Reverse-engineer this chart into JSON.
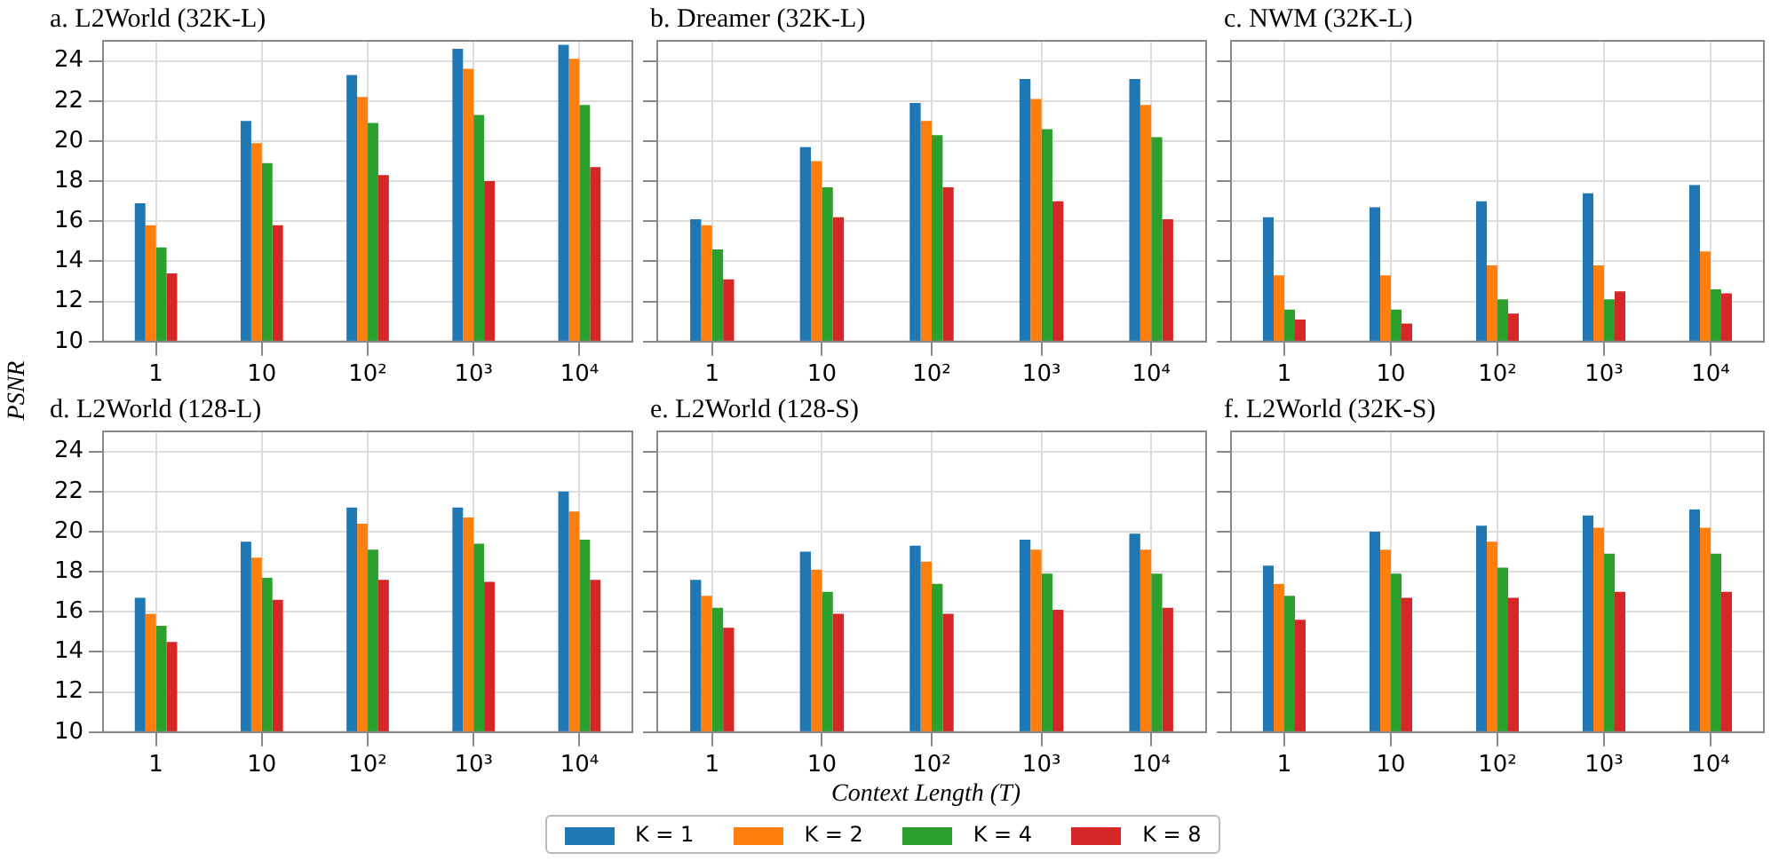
{
  "chart_data": [
    {
      "type": "bar",
      "title": "a. L2World (32K-L)",
      "ylabel": "PSNR",
      "legend": "bottom",
      "categories": [
        "1",
        "10",
        "10²",
        "10³",
        "10⁴"
      ],
      "ylim": [
        10,
        25
      ],
      "yticks": [
        10,
        12,
        14,
        16,
        18,
        20,
        22,
        24
      ],
      "grid": true,
      "tick_labels": "xy",
      "series": [
        {
          "name": "K = 1",
          "color": "#1f77b4",
          "values": [
            16.9,
            21.0,
            23.3,
            24.6,
            24.8
          ]
        },
        {
          "name": "K = 2",
          "color": "#ff7f0e",
          "values": [
            15.8,
            19.9,
            22.2,
            23.6,
            24.1
          ]
        },
        {
          "name": "K = 4",
          "color": "#2ca02c",
          "values": [
            14.7,
            18.9,
            20.9,
            21.3,
            21.8
          ]
        },
        {
          "name": "K = 8",
          "color": "#d62728",
          "values": [
            13.4,
            15.8,
            18.3,
            18.0,
            18.7
          ]
        }
      ]
    },
    {
      "type": "bar",
      "title": "b. Dreamer (32K-L)",
      "categories": [
        "1",
        "10",
        "10²",
        "10³",
        "10⁴"
      ],
      "ylim": [
        10,
        25
      ],
      "yticks": [
        10,
        12,
        14,
        16,
        18,
        20,
        22,
        24
      ],
      "grid": true,
      "tick_labels": "x",
      "series": [
        {
          "color": "#1f77b4",
          "values": [
            16.1,
            19.7,
            21.9,
            23.1,
            23.1
          ]
        },
        {
          "color": "#ff7f0e",
          "values": [
            15.8,
            19.0,
            21.0,
            22.1,
            21.8
          ]
        },
        {
          "color": "#2ca02c",
          "values": [
            14.6,
            17.7,
            20.3,
            20.6,
            20.2
          ]
        },
        {
          "color": "#d62728",
          "values": [
            13.1,
            16.2,
            17.7,
            17.0,
            16.1
          ]
        }
      ]
    },
    {
      "type": "bar",
      "title": "c. NWM (32K-L)",
      "categories": [
        "1",
        "10",
        "10²",
        "10³",
        "10⁴"
      ],
      "ylim": [
        10,
        25
      ],
      "yticks": [
        10,
        12,
        14,
        16,
        18,
        20,
        22,
        24
      ],
      "grid": true,
      "tick_labels": "x",
      "series": [
        {
          "color": "#1f77b4",
          "values": [
            16.2,
            16.7,
            17.0,
            17.4,
            17.8
          ]
        },
        {
          "color": "#ff7f0e",
          "values": [
            13.3,
            13.3,
            13.8,
            13.8,
            14.5
          ]
        },
        {
          "color": "#2ca02c",
          "values": [
            11.6,
            11.6,
            12.1,
            12.1,
            12.6
          ]
        },
        {
          "color": "#d62728",
          "values": [
            11.1,
            10.9,
            11.4,
            12.5,
            12.4
          ]
        }
      ]
    },
    {
      "type": "bar",
      "title": "d. L2World (128-L)",
      "categories": [
        "1",
        "10",
        "10²",
        "10³",
        "10⁴"
      ],
      "ylim": [
        10,
        25
      ],
      "yticks": [
        10,
        12,
        14,
        16,
        18,
        20,
        22,
        24
      ],
      "grid": true,
      "tick_labels": "xy",
      "series": [
        {
          "color": "#1f77b4",
          "values": [
            16.7,
            19.5,
            21.2,
            21.2,
            22.0
          ]
        },
        {
          "color": "#ff7f0e",
          "values": [
            15.9,
            18.7,
            20.4,
            20.7,
            21.0
          ]
        },
        {
          "color": "#2ca02c",
          "values": [
            15.3,
            17.7,
            19.1,
            19.4,
            19.6
          ]
        },
        {
          "color": "#d62728",
          "values": [
            14.5,
            16.6,
            17.6,
            17.5,
            17.6
          ]
        }
      ]
    },
    {
      "type": "bar",
      "title": "e. L2World (128-S)",
      "xlabel": "Context Length (T)",
      "categories": [
        "1",
        "10",
        "10²",
        "10³",
        "10⁴"
      ],
      "ylim": [
        10,
        25
      ],
      "yticks": [
        10,
        12,
        14,
        16,
        18,
        20,
        22,
        24
      ],
      "grid": true,
      "tick_labels": "x",
      "series": [
        {
          "color": "#1f77b4",
          "values": [
            17.6,
            19.0,
            19.3,
            19.6,
            19.9
          ]
        },
        {
          "color": "#ff7f0e",
          "values": [
            16.8,
            18.1,
            18.5,
            19.1,
            19.1
          ]
        },
        {
          "color": "#2ca02c",
          "values": [
            16.2,
            17.0,
            17.4,
            17.9,
            17.9
          ]
        },
        {
          "color": "#d62728",
          "values": [
            15.2,
            15.9,
            15.9,
            16.1,
            16.2
          ]
        }
      ]
    },
    {
      "type": "bar",
      "title": "f. L2World (32K-S)",
      "categories": [
        "1",
        "10",
        "10²",
        "10³",
        "10⁴"
      ],
      "ylim": [
        10,
        25
      ],
      "yticks": [
        10,
        12,
        14,
        16,
        18,
        20,
        22,
        24
      ],
      "grid": true,
      "tick_labels": "x",
      "series": [
        {
          "color": "#1f77b4",
          "values": [
            18.3,
            20.0,
            20.3,
            20.8,
            21.1
          ]
        },
        {
          "color": "#ff7f0e",
          "values": [
            17.4,
            19.1,
            19.5,
            20.2,
            20.2
          ]
        },
        {
          "color": "#2ca02c",
          "values": [
            16.8,
            17.9,
            18.2,
            18.9,
            18.9
          ]
        },
        {
          "color": "#d62728",
          "values": [
            15.6,
            16.7,
            16.7,
            17.0,
            17.0
          ]
        }
      ]
    }
  ]
}
